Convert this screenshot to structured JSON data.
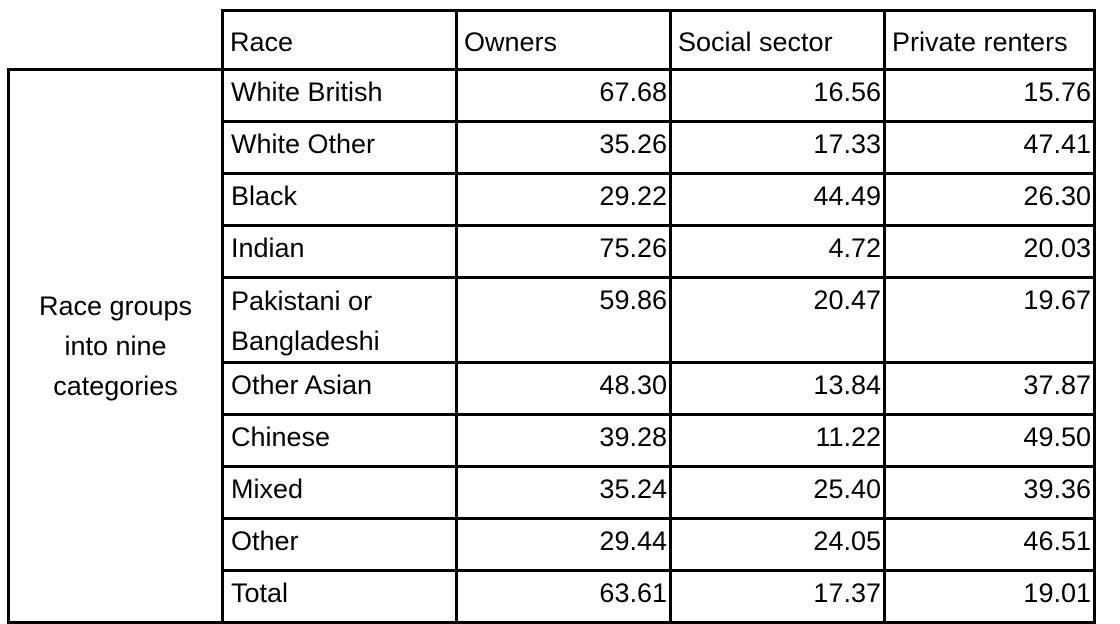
{
  "headers": {
    "race": "Race",
    "owners": "Owners",
    "social": "Social sector",
    "private": "Private renters"
  },
  "group_label": "Race groups into nine categories",
  "rows": [
    {
      "race": "White British",
      "owners": "67.68",
      "social": "16.56",
      "private": "15.76"
    },
    {
      "race": "White Other",
      "owners": "35.26",
      "social": "17.33",
      "private": "47.41"
    },
    {
      "race": "Black",
      "owners": "29.22",
      "social": "44.49",
      "private": "26.30"
    },
    {
      "race": "Indian",
      "owners": "75.26",
      "social": "4.72",
      "private": "20.03"
    },
    {
      "race": "Pakistani or Bangladeshi",
      "owners": "59.86",
      "social": "20.47",
      "private": "19.67"
    },
    {
      "race": "Other Asian",
      "owners": "48.30",
      "social": "13.84",
      "private": "37.87"
    },
    {
      "race": "Chinese",
      "owners": "39.28",
      "social": "11.22",
      "private": "49.50"
    },
    {
      "race": "Mixed",
      "owners": "35.24",
      "social": "25.40",
      "private": "39.36"
    },
    {
      "race": "Other",
      "owners": "29.44",
      "social": "24.05",
      "private": "46.51"
    },
    {
      "race": "Total",
      "owners": "63.61",
      "social": "17.37",
      "private": "19.01"
    }
  ]
}
